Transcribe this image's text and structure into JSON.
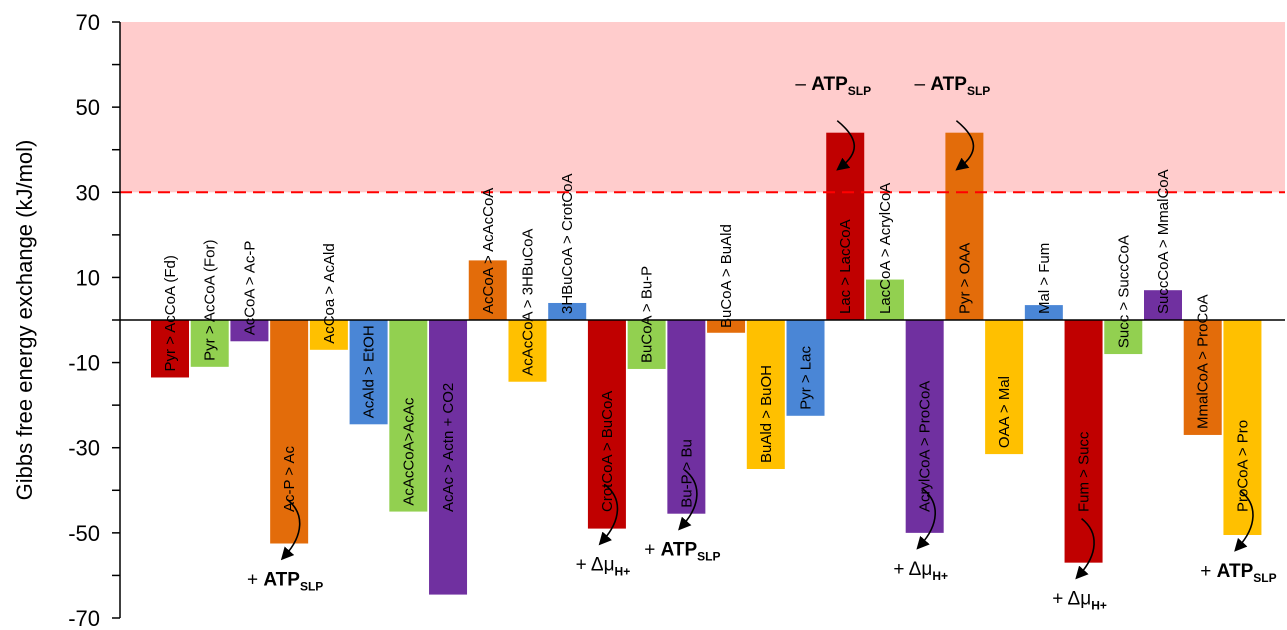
{
  "chart_data": {
    "type": "bar",
    "ylabel": "Gibbs free energy exchange (kJ/mol)",
    "ylim": [
      -70,
      70
    ],
    "yticks": [
      70,
      50,
      30,
      10,
      -10,
      -30,
      -50,
      -70
    ],
    "threshold": 30,
    "shaded_region": [
      30,
      70
    ],
    "grid": false,
    "categories": [
      "Pyr > AcCoA (Fd)",
      "Pyr > AcCoA (For)",
      "AcCoA > Ac-P",
      "Ac-P > Ac",
      "AcCoa > AcAld",
      "AcAld > EtOH",
      "AcAcCoA>AcAc",
      "AcAc > Actn + CO2",
      "AcCoA > AcAcCoA",
      "AcAcCoA > 3HBuCoA",
      "3HBuCoA > CrotCoA",
      "CrotCoA > BuCoA",
      "BuCoA > Bu-P",
      "Bu-P > Bu",
      "BuCoA > BuAld",
      "BuAld > BuOH",
      "Pyr > Lac",
      "Lac > LacCoA",
      "LacCoA > AcrylCoA",
      "AcrylCoA > ProCoA",
      "Pyr > OAA",
      "OAA > Mal",
      "Mal > Fum",
      "Fum > Succ",
      "Succ > SuccCoA",
      "SuccCoA > MmalCoA",
      "MmalCoA > ProCoA",
      "ProCoA > Pro"
    ],
    "values": [
      -13.5,
      -11,
      -5,
      -52.5,
      -7,
      -24.5,
      -45,
      -64.5,
      14,
      -14.5,
      4,
      -49,
      -11.5,
      -45.5,
      -3,
      -35,
      -22.5,
      44,
      9.5,
      -50,
      44,
      -31.5,
      3.5,
      -57,
      -8,
      7,
      -27,
      -50.5
    ],
    "colors": [
      "#c00000",
      "#92d050",
      "#7030a0",
      "#e36c0a",
      "#ffc000",
      "#4a86d6",
      "#92d050",
      "#7030a0",
      "#e36c0a",
      "#ffc000",
      "#4a86d6",
      "#c00000",
      "#92d050",
      "#7030a0",
      "#e36c0a",
      "#ffc000",
      "#4a86d6",
      "#c00000",
      "#92d050",
      "#7030a0",
      "#e36c0a",
      "#ffc000",
      "#4a86d6",
      "#c00000",
      "#92d050",
      "#7030a0",
      "#e36c0a",
      "#ffc000"
    ],
    "threshold_color": "#ff0000",
    "shade_color": "#ffcccc",
    "annotations": [
      {
        "bar": 3,
        "sign": "+",
        "main": "ATP",
        "sub": "SLP",
        "bold": true
      },
      {
        "bar": 11,
        "sign": "+",
        "main": "Δμ",
        "sub": "H+",
        "bold": false
      },
      {
        "bar": 13,
        "sign": "+",
        "main": "ATP",
        "sub": "SLP",
        "bold": true
      },
      {
        "bar": 17,
        "sign": "–",
        "main": "ATP",
        "sub": "SLP",
        "bold": true
      },
      {
        "bar": 19,
        "sign": "+",
        "main": "Δμ",
        "sub": "H+",
        "bold": false
      },
      {
        "bar": 20,
        "sign": "–",
        "main": "ATP",
        "sub": "SLP",
        "bold": true
      },
      {
        "bar": 23,
        "sign": "+",
        "main": "Δμ",
        "sub": "H+",
        "bold": false
      },
      {
        "bar": 27,
        "sign": "+",
        "main": "ATP",
        "sub": "SLP",
        "bold": true
      }
    ]
  }
}
